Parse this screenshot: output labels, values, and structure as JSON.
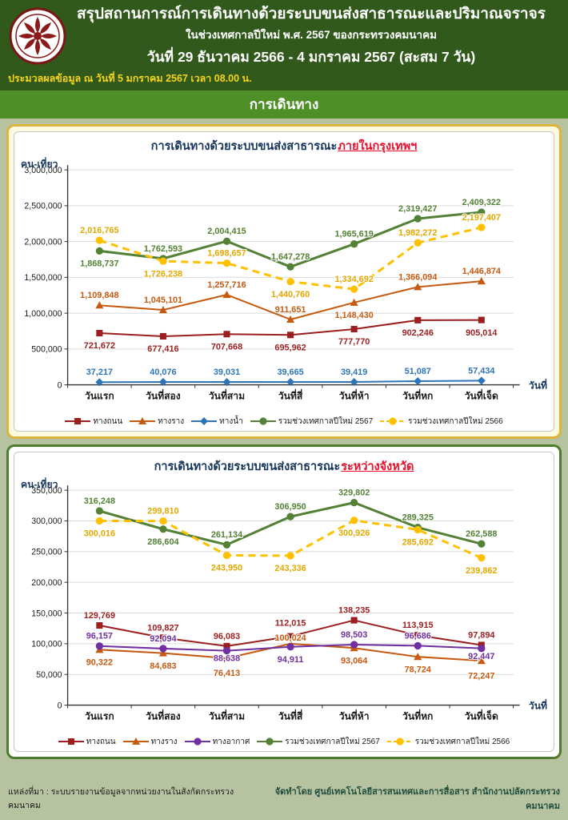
{
  "header": {
    "title_line1": "สรุปสถานการณ์การเดินทางด้วยระบบขนส่งสาธารณะและปริมาณจราจร",
    "title_line2": "ในช่วงเทศกาลปีใหม่ พ.ศ. 2567 ของกระทรวงคมนาคม",
    "title_line3": "วันที่ 29 ธันวาคม 2566 - 4 มกราคม 2567 (สะสม 7 วัน)",
    "processed_note": "ประมวลผลข้อมูล ณ วันที่ 5 มกราคม 2567 เวลา 08.00 น.",
    "logo": "ministry-of-transport-emblem"
  },
  "section_title": "การเดินทาง",
  "footer": {
    "source": "แหล่งที่มา : ระบบรายงานข้อมูลจากหน่วยงานในสังกัดกระทรวงคมนาคม",
    "prepared_by": "จัดทำโดย ศูนย์เทคโนโลยีสารสนเทศและการสื่อสาร สำนักงานปลัดกระทรวงคมนาคม"
  },
  "colors": {
    "page_bg": "#b7c2a0",
    "header_bg": "#30591b",
    "band_bg": "#4e8f28",
    "note_yellow": "#f6d41c",
    "panel_yellow_border": "#ddb53c",
    "panel_green_border": "#4e7c2d",
    "title_navy": "#17365d",
    "highlight_red": "#e8112d"
  },
  "chart_data": [
    {
      "type": "line",
      "title": "การเดินทางด้วยระบบขนส่งสาธารณะภายในกรุงเทพฯ",
      "title_prefix": "การเดินทางด้วยระบบขนส่งสาธารณะ",
      "title_highlight": "ภายในกรุงเทพฯ",
      "ylabel": "คน-เที่ยว",
      "xlabel": "วันที่",
      "ylim": [
        0,
        3000000
      ],
      "ytick_step": 500000,
      "grid": true,
      "legend_position": "bottom",
      "categories": [
        "วันแรก",
        "วันที่สอง",
        "วันที่สาม",
        "วันที่สี่",
        "วันที่ห้า",
        "วันที่หก",
        "วันที่เจ็ด"
      ],
      "series": [
        {
          "name": "ทางถนน",
          "color": "#9c1f1f",
          "marker": "square",
          "dash": false,
          "width": 2,
          "values": [
            721672,
            677416,
            707668,
            695962,
            777770,
            902246,
            905014
          ],
          "label_pos": [
            "b",
            "b",
            "b",
            "b",
            "b",
            "b",
            "b"
          ]
        },
        {
          "name": "ทางราง",
          "color": "#c55a11",
          "marker": "triangle",
          "dash": false,
          "width": 2,
          "values": [
            1109848,
            1045101,
            1257716,
            911651,
            1148430,
            1366094,
            1446874
          ],
          "label_pos": [
            "a",
            "a",
            "a",
            "a",
            "b",
            "a",
            "a"
          ]
        },
        {
          "name": "ทางน้ำ",
          "color": "#2e75b6",
          "marker": "diamond",
          "dash": false,
          "width": 2,
          "values": [
            37217,
            40076,
            39031,
            39665,
            39419,
            51087,
            57434
          ],
          "label_pos": [
            "a",
            "a",
            "a",
            "a",
            "a",
            "a",
            "a"
          ]
        },
        {
          "name": "รวมช่วงเทศกาลปีใหม่ 2567",
          "color": "#538135",
          "marker": "circle",
          "dash": false,
          "width": 3,
          "values": [
            1868737,
            1762593,
            2004415,
            1647278,
            1965619,
            2319427,
            2409322
          ],
          "label_pos": [
            "b",
            "a",
            "a",
            "a",
            "a",
            "a",
            "a"
          ]
        },
        {
          "name": "รวมช่วงเทศกาลปีใหม่ 2566",
          "color": "#ffc000",
          "label_color": "#e3a800",
          "marker": "circle",
          "dash": true,
          "width": 3,
          "values": [
            2016765,
            1726238,
            1698657,
            1440760,
            1334692,
            1982272,
            2197407
          ],
          "label_pos": [
            "a",
            "b",
            "a",
            "b",
            "a",
            "a",
            "a"
          ]
        }
      ]
    },
    {
      "type": "line",
      "title": "การเดินทางด้วยระบบขนส่งสาธารณะระหว่างจังหวัด",
      "title_prefix": "การเดินทางด้วยระบบขนส่งสาธารณะ",
      "title_highlight": "ระหว่างจังหวัด",
      "ylabel": "คน-เที่ยว",
      "xlabel": "วันที่",
      "ylim": [
        0,
        350000
      ],
      "ytick_step": 50000,
      "grid": true,
      "legend_position": "bottom",
      "categories": [
        "วันแรก",
        "วันที่สอง",
        "วันที่สาม",
        "วันที่สี่",
        "วันที่ห้า",
        "วันที่หก",
        "วันที่เจ็ด"
      ],
      "series": [
        {
          "name": "ทางถนน",
          "color": "#9c1f1f",
          "marker": "square",
          "dash": false,
          "width": 2,
          "values": [
            129769,
            109827,
            96083,
            112015,
            138235,
            113915,
            97894
          ],
          "label_pos": [
            "a",
            "a",
            "a",
            -13,
            "a",
            "a",
            "a"
          ]
        },
        {
          "name": "ทางราง",
          "color": "#c55a11",
          "marker": "triangle",
          "dash": false,
          "width": 2,
          "values": [
            90322,
            84683,
            76413,
            100024,
            93064,
            78724,
            72247
          ],
          "label_pos": [
            "b",
            "b",
            22,
            -4,
            "b",
            "b",
            22
          ]
        },
        {
          "name": "ทางอากาศ",
          "color": "#7030a0",
          "marker": "circle",
          "dash": false,
          "width": 2,
          "values": [
            96157,
            92094,
            88638,
            94911,
            98503,
            96686,
            92447
          ],
          "label_pos": [
            "a",
            "a",
            13,
            "b",
            "a",
            "a",
            13
          ]
        },
        {
          "name": "รวมช่วงเทศกาลปีใหม่ 2567",
          "color": "#538135",
          "marker": "circle",
          "dash": false,
          "width": 3,
          "values": [
            316248,
            286604,
            261134,
            306950,
            329802,
            289325,
            262588
          ],
          "label_pos": [
            "a",
            "b",
            "a",
            "a",
            "a",
            "a",
            "a"
          ]
        },
        {
          "name": "รวมช่วงเทศกาลปีใหม่ 2566",
          "color": "#ffc000",
          "label_color": "#e3a800",
          "marker": "circle",
          "dash": true,
          "width": 3,
          "values": [
            300016,
            299810,
            243950,
            243336,
            300926,
            285692,
            239862
          ],
          "label_pos": [
            "b",
            "a",
            "b",
            "b",
            "b",
            "b",
            "b"
          ]
        }
      ]
    }
  ]
}
